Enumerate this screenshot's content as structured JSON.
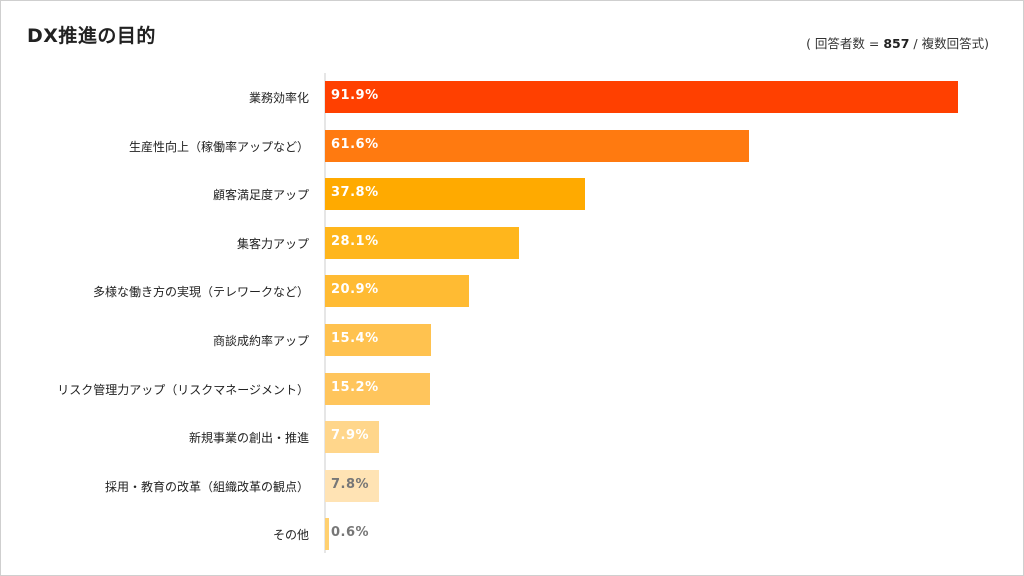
{
  "title": "DX推進の目的",
  "note": {
    "open": "( 回答者数 = ",
    "n": "857",
    "close": " / 複数回答式)"
  },
  "chart_data": {
    "type": "bar",
    "orientation": "horizontal",
    "title": "DX推進の目的",
    "xlim": [
      0,
      100
    ],
    "grid": false,
    "categories": [
      "業務効率化",
      "生産性向上（稼働率アップなど）",
      "顧客満足度アップ",
      "集客力アップ",
      "多様な働き方の実現（テレワークなど）",
      "商談成約率アップ",
      "リスク管理力アップ（リスクマネージメント）",
      "新規事業の創出・推進",
      "採用・教育の改革（組織改革の観点）",
      "その他"
    ],
    "values": [
      91.9,
      61.6,
      37.8,
      28.1,
      20.9,
      15.4,
      15.2,
      7.9,
      7.8,
      0.6
    ],
    "value_labels": [
      "91.9%",
      "61.6%",
      "37.8%",
      "28.1%",
      "20.9%",
      "15.4%",
      "15.2%",
      "7.9%",
      "7.8%",
      "0.6%"
    ],
    "bar_colors": [
      "#ff4000",
      "#ff7a10",
      "#ffaa00",
      "#ffb61c",
      "#ffbb33",
      "#ffc24f",
      "#ffc55c",
      "#ffd68b",
      "#ffe3b4",
      "#ffd070"
    ],
    "value_label_colors": [
      "#ffffff",
      "#ffffff",
      "#ffffff",
      "#ffffff",
      "#ffffff",
      "#ffffff",
      "#ffffff",
      "#ffffff",
      "#777777",
      "#777777"
    ]
  }
}
